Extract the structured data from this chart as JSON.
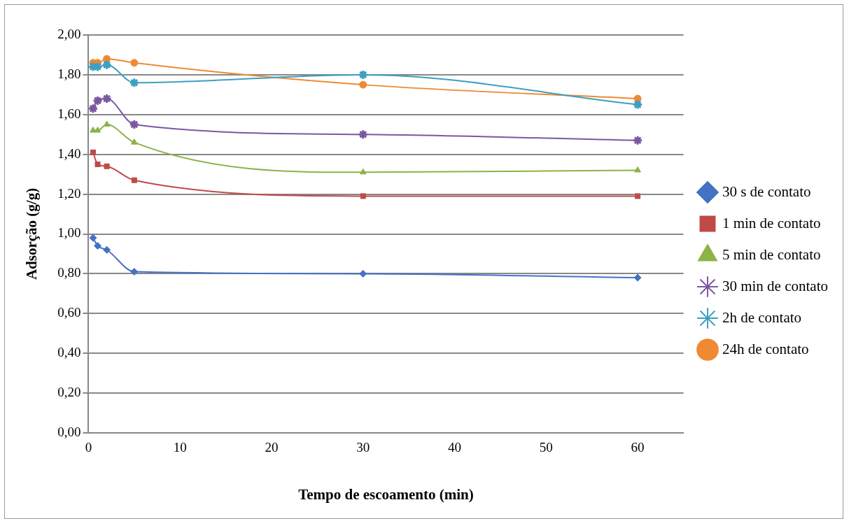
{
  "chart_data": {
    "type": "line",
    "xlabel": "Tempo de escoamento (min)",
    "ylabel": "Adsorção (g/g)",
    "xlim": [
      0,
      65
    ],
    "xticks": [
      0,
      10,
      20,
      30,
      40,
      50,
      60
    ],
    "ylim": [
      0,
      2
    ],
    "yticks": [
      {
        "value": 0,
        "label": "0,00"
      },
      {
        "value": 0.2,
        "label": "0,20"
      },
      {
        "value": 0.4,
        "label": "0,40"
      },
      {
        "value": 0.6,
        "label": "0,60"
      },
      {
        "value": 0.8,
        "label": "0,80"
      },
      {
        "value": 1,
        "label": "1,00"
      },
      {
        "value": 1.2,
        "label": "1,20"
      },
      {
        "value": 1.4,
        "label": "1,40"
      },
      {
        "value": 1.6,
        "label": "1,60"
      },
      {
        "value": 1.8,
        "label": "1,80"
      },
      {
        "value": 2,
        "label": "2,00"
      }
    ],
    "grid": "y",
    "legend": "right",
    "x": [
      0.5,
      1,
      2,
      5,
      30,
      60
    ],
    "series": [
      {
        "name": "30 s de contato",
        "color": "#4472c4",
        "marker": "diamond",
        "values": [
          0.98,
          0.94,
          0.92,
          0.81,
          0.8,
          0.78
        ]
      },
      {
        "name": "1 min de contato",
        "color": "#be4b48",
        "marker": "square",
        "values": [
          1.41,
          1.35,
          1.34,
          1.27,
          1.19,
          1.19
        ]
      },
      {
        "name": "5 min de contato",
        "color": "#8cb346",
        "marker": "triangle",
        "values": [
          1.52,
          1.52,
          1.55,
          1.46,
          1.31,
          1.32
        ]
      },
      {
        "name": "30 min de contato",
        "color": "#7a58a0",
        "marker": "cross",
        "values": [
          1.63,
          1.67,
          1.68,
          1.55,
          1.5,
          1.47
        ]
      },
      {
        "name": "2h de contato",
        "color": "#3ca0c0",
        "marker": "cross",
        "values": [
          1.84,
          1.84,
          1.85,
          1.76,
          1.8,
          1.65
        ]
      },
      {
        "name": "24h de contato",
        "color": "#ef8a33",
        "marker": "circle",
        "values": [
          1.86,
          1.86,
          1.88,
          1.86,
          1.75,
          1.68
        ]
      }
    ]
  }
}
